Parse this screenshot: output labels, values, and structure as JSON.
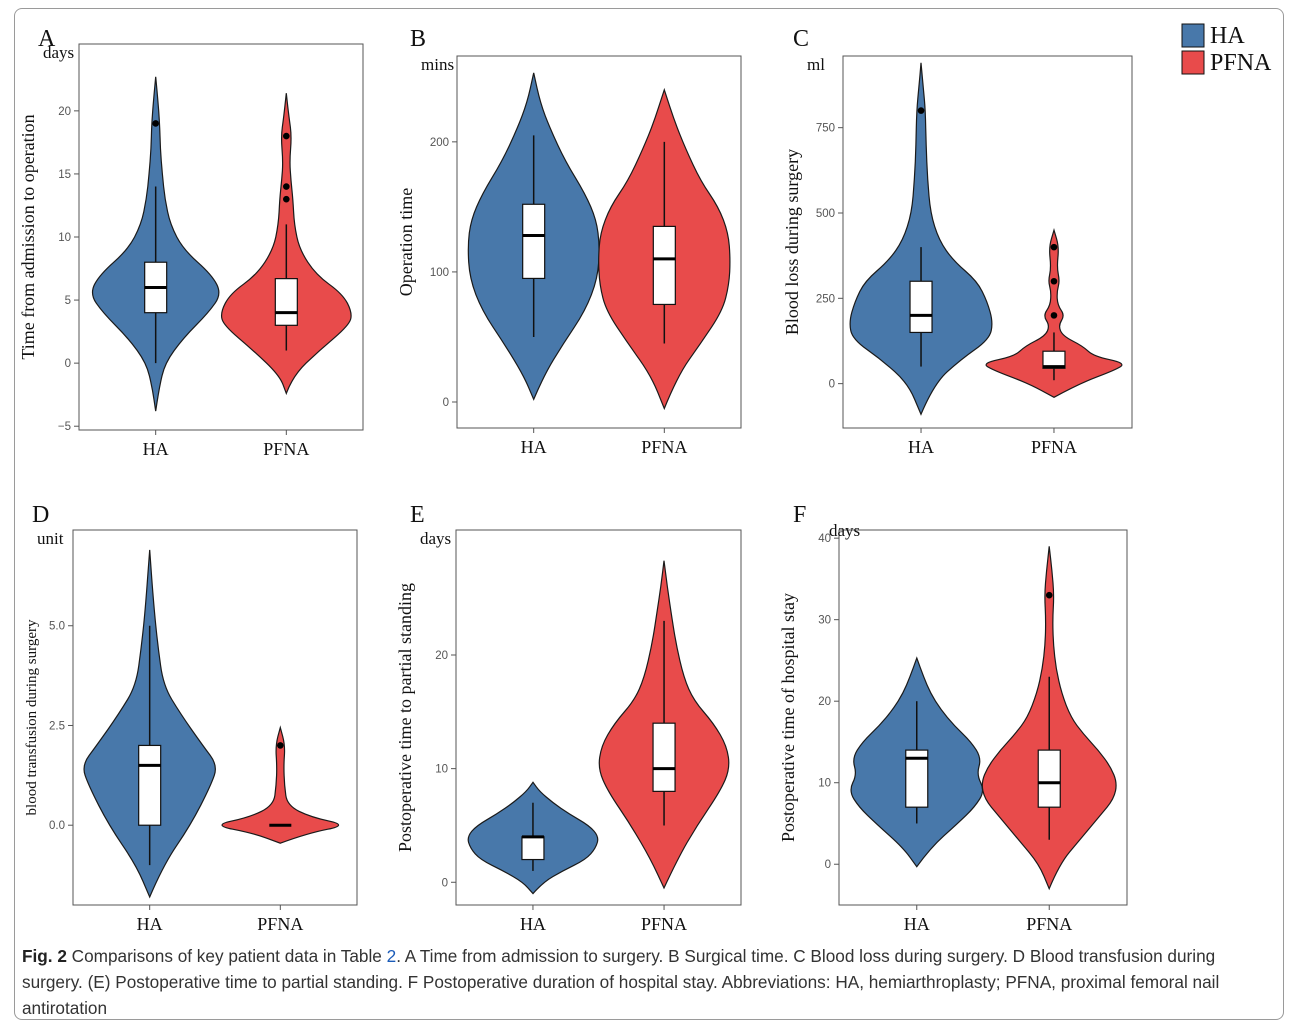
{
  "colors": {
    "HA": "#4878aa",
    "PFNA": "#e84b4b"
  },
  "legend": {
    "items": [
      "HA",
      "PFNA"
    ]
  },
  "caption": {
    "label": "Fig. 2",
    "before_ref": " Comparisons of key patient data in Table ",
    "ref": "2",
    "after_ref": ". A Time from admission to surgery. B Surgical time. C Blood loss during surgery. D Blood transfusion during surgery. (E) Postoperative time to partial standing. F Postoperative duration of hospital stay. Abbreviations: HA, hemiarthroplasty; PFNA, proximal femoral nail antirotation"
  },
  "chart_data": [
    {
      "type": "violin",
      "panel": "A",
      "unit": "days",
      "ylabel": "Time from admission to operation",
      "categories": [
        "HA",
        "PFNA"
      ],
      "yticks": [
        -5,
        0,
        5,
        10,
        15,
        20
      ],
      "ylim": [
        -5.3,
        25.3
      ],
      "groups": [
        {
          "name": "HA",
          "violin_min": -3.8,
          "violin_max": 22.7,
          "density": [
            [
              -3.8,
              0
            ],
            [
              -2,
              0.05
            ],
            [
              0,
              0.14
            ],
            [
              2,
              0.42
            ],
            [
              4,
              0.8
            ],
            [
              5.5,
              1
            ],
            [
              7,
              0.85
            ],
            [
              9,
              0.42
            ],
            [
              11,
              0.22
            ],
            [
              13,
              0.14
            ],
            [
              15,
              0.1
            ],
            [
              17,
              0.07
            ],
            [
              19,
              0.06
            ],
            [
              21,
              0.03
            ],
            [
              22.7,
              0
            ]
          ],
          "box": {
            "q1": 4,
            "median": 6,
            "q3": 8,
            "whisker_low": 0,
            "whisker_high": 14
          },
          "outliers": [
            19
          ]
        },
        {
          "name": "PFNA",
          "violin_min": -2.4,
          "violin_max": 21.4,
          "density": [
            [
              -2.4,
              0
            ],
            [
              -1,
              0.1
            ],
            [
              1,
              0.5
            ],
            [
              3,
              0.95
            ],
            [
              4,
              1
            ],
            [
              5.5,
              0.85
            ],
            [
              7,
              0.45
            ],
            [
              9,
              0.2
            ],
            [
              11,
              0.12
            ],
            [
              13,
              0.1
            ],
            [
              14.5,
              0.07
            ],
            [
              16,
              0.05
            ],
            [
              18,
              0.08
            ],
            [
              19.5,
              0.04
            ],
            [
              21.4,
              0
            ]
          ],
          "box": {
            "q1": 3,
            "median": 4,
            "q3": 6.7,
            "whisker_low": 1,
            "whisker_high": 11
          },
          "outliers": [
            18,
            14,
            13
          ]
        }
      ]
    },
    {
      "type": "violin",
      "panel": "B",
      "unit": "mins",
      "ylabel": "Operation time",
      "categories": [
        "HA",
        "PFNA"
      ],
      "yticks": [
        0,
        100,
        200
      ],
      "ylim": [
        -20,
        266
      ],
      "groups": [
        {
          "name": "HA",
          "violin_min": 2,
          "violin_max": 253,
          "density": [
            [
              2,
              0
            ],
            [
              20,
              0.15
            ],
            [
              45,
              0.45
            ],
            [
              70,
              0.78
            ],
            [
              95,
              0.97
            ],
            [
              120,
              1
            ],
            [
              140,
              0.95
            ],
            [
              160,
              0.78
            ],
            [
              185,
              0.48
            ],
            [
              210,
              0.25
            ],
            [
              230,
              0.1
            ],
            [
              253,
              0
            ]
          ],
          "box": {
            "q1": 95,
            "median": 128,
            "q3": 152,
            "whisker_low": 50,
            "whisker_high": 205
          },
          "outliers": []
        },
        {
          "name": "PFNA",
          "violin_min": -5,
          "violin_max": 240,
          "density": [
            [
              -5,
              0
            ],
            [
              20,
              0.2
            ],
            [
              45,
              0.55
            ],
            [
              70,
              0.88
            ],
            [
              90,
              0.98
            ],
            [
              110,
              1
            ],
            [
              130,
              0.97
            ],
            [
              150,
              0.82
            ],
            [
              170,
              0.55
            ],
            [
              195,
              0.32
            ],
            [
              215,
              0.16
            ],
            [
              240,
              0
            ]
          ],
          "box": {
            "q1": 75,
            "median": 110,
            "q3": 135,
            "whisker_low": 45,
            "whisker_high": 200
          },
          "outliers": []
        }
      ]
    },
    {
      "type": "violin",
      "panel": "C",
      "unit": "ml",
      "ylabel": "Blood loss during surgery",
      "categories": [
        "HA",
        "PFNA"
      ],
      "yticks": [
        0,
        250,
        500,
        750
      ],
      "ylim": [
        -130,
        960
      ],
      "groups": [
        {
          "name": "HA",
          "violin_min": -90,
          "violin_max": 940,
          "density": [
            [
              -90,
              0
            ],
            [
              0,
              0.18
            ],
            [
              70,
              0.55
            ],
            [
              130,
              0.95
            ],
            [
              180,
              1
            ],
            [
              240,
              0.92
            ],
            [
              300,
              0.78
            ],
            [
              360,
              0.45
            ],
            [
              420,
              0.25
            ],
            [
              500,
              0.13
            ],
            [
              600,
              0.09
            ],
            [
              700,
              0.07
            ],
            [
              800,
              0.06
            ],
            [
              870,
              0.03
            ],
            [
              940,
              0
            ]
          ],
          "box": {
            "q1": 150,
            "median": 200,
            "q3": 300,
            "whisker_low": 50,
            "whisker_high": 400
          },
          "outliers": [
            800
          ]
        },
        {
          "name": "PFNA",
          "violin_min": -40,
          "violin_max": 450,
          "density": [
            [
              -40,
              0
            ],
            [
              0,
              0.35
            ],
            [
              40,
              0.85
            ],
            [
              60,
              1
            ],
            [
              80,
              0.55
            ],
            [
              110,
              0.4
            ],
            [
              140,
              0.12
            ],
            [
              170,
              0.06
            ],
            [
              200,
              0.15
            ],
            [
              230,
              0.05
            ],
            [
              270,
              0.04
            ],
            [
              300,
              0.08
            ],
            [
              340,
              0.04
            ],
            [
              400,
              0.07
            ],
            [
              450,
              0
            ]
          ],
          "box": {
            "q1": 45,
            "median": 50,
            "q3": 95,
            "whisker_low": 10,
            "whisker_high": 150
          },
          "outliers": [
            400,
            300,
            200
          ]
        }
      ]
    },
    {
      "type": "violin",
      "panel": "D",
      "unit": "unit",
      "ylabel": "blood transfusion during surgery",
      "categories": [
        "HA",
        "PFNA"
      ],
      "yticks": [
        0.0,
        2.5,
        5.0
      ],
      "ylim": [
        -2.0,
        7.4
      ],
      "groups": [
        {
          "name": "HA",
          "violin_min": -1.8,
          "violin_max": 6.9,
          "density": [
            [
              -1.8,
              0
            ],
            [
              -1,
              0.2
            ],
            [
              0,
              0.6
            ],
            [
              1,
              0.9
            ],
            [
              1.5,
              1
            ],
            [
              2,
              0.78
            ],
            [
              2.8,
              0.45
            ],
            [
              3.5,
              0.2
            ],
            [
              4.5,
              0.12
            ],
            [
              5.5,
              0.06
            ],
            [
              6.9,
              0
            ]
          ],
          "box": {
            "q1": 0,
            "median": 1.5,
            "q3": 2,
            "whisker_low": -1,
            "whisker_high": 5
          },
          "outliers": []
        },
        {
          "name": "PFNA",
          "violin_min": -0.45,
          "violin_max": 2.45,
          "density": [
            [
              -0.45,
              0
            ],
            [
              -0.2,
              0.4
            ],
            [
              0,
              1
            ],
            [
              0.2,
              0.45
            ],
            [
              0.5,
              0.1
            ],
            [
              1,
              0.06
            ],
            [
              1.5,
              0.05
            ],
            [
              2,
              0.07
            ],
            [
              2.45,
              0
            ]
          ],
          "box": {
            "q1": 0,
            "median": 0,
            "q3": 0,
            "whisker_low": 0,
            "whisker_high": 0
          },
          "outliers": [
            2.0
          ]
        }
      ]
    },
    {
      "type": "violin",
      "panel": "E",
      "unit": "days",
      "ylabel": "Postoperative time to partial standing",
      "categories": [
        "HA",
        "PFNA"
      ],
      "yticks": [
        0,
        10,
        20
      ],
      "ylim": [
        -2,
        31
      ],
      "groups": [
        {
          "name": "HA",
          "violin_min": -1,
          "violin_max": 8.8,
          "density": [
            [
              -1,
              0
            ],
            [
              0,
              0.15
            ],
            [
              1,
              0.45
            ],
            [
              2,
              0.8
            ],
            [
              3,
              0.95
            ],
            [
              4,
              1
            ],
            [
              5,
              0.85
            ],
            [
              6,
              0.55
            ],
            [
              7,
              0.3
            ],
            [
              8,
              0.1
            ],
            [
              8.8,
              0
            ]
          ],
          "box": {
            "q1": 2,
            "median": 4,
            "q3": 4,
            "whisker_low": 1,
            "whisker_high": 7
          },
          "outliers": []
        },
        {
          "name": "PFNA",
          "violin_min": -0.5,
          "violin_max": 28.3,
          "density": [
            [
              -0.5,
              0
            ],
            [
              2,
              0.2
            ],
            [
              5,
              0.5
            ],
            [
              8,
              0.85
            ],
            [
              10,
              1
            ],
            [
              12,
              0.95
            ],
            [
              14,
              0.75
            ],
            [
              16,
              0.45
            ],
            [
              18,
              0.3
            ],
            [
              21,
              0.18
            ],
            [
              24,
              0.1
            ],
            [
              26,
              0.05
            ],
            [
              28.3,
              0
            ]
          ],
          "box": {
            "q1": 8,
            "median": 10,
            "q3": 14,
            "whisker_low": 5,
            "whisker_high": 23
          },
          "outliers": []
        }
      ]
    },
    {
      "type": "violin",
      "panel": "F",
      "unit": "days",
      "ylabel": "Postoperative time of hospital stay",
      "categories": [
        "HA",
        "PFNA"
      ],
      "yticks": [
        0,
        10,
        20,
        30,
        40
      ],
      "ylim": [
        -5,
        41
      ],
      "groups": [
        {
          "name": "HA",
          "violin_min": -0.3,
          "violin_max": 25.3,
          "density": [
            [
              -0.3,
              0
            ],
            [
              2,
              0.2
            ],
            [
              5,
              0.6
            ],
            [
              7,
              0.85
            ],
            [
              9,
              1
            ],
            [
              11,
              0.88
            ],
            [
              13,
              0.95
            ],
            [
              15,
              0.8
            ],
            [
              17,
              0.55
            ],
            [
              19,
              0.35
            ],
            [
              21,
              0.2
            ],
            [
              23,
              0.1
            ],
            [
              25.3,
              0
            ]
          ],
          "box": {
            "q1": 7,
            "median": 13,
            "q3": 14,
            "whisker_low": 5,
            "whisker_high": 20
          },
          "outliers": []
        },
        {
          "name": "PFNA",
          "violin_min": -3,
          "violin_max": 39,
          "density": [
            [
              -3,
              0
            ],
            [
              0,
              0.15
            ],
            [
              3,
              0.45
            ],
            [
              6,
              0.75
            ],
            [
              8,
              0.95
            ],
            [
              10,
              1
            ],
            [
              12,
              0.9
            ],
            [
              14,
              0.72
            ],
            [
              16,
              0.5
            ],
            [
              18,
              0.32
            ],
            [
              21,
              0.18
            ],
            [
              24,
              0.1
            ],
            [
              27,
              0.06
            ],
            [
              30,
              0.05
            ],
            [
              33,
              0.07
            ],
            [
              36,
              0.04
            ],
            [
              39,
              0
            ]
          ],
          "box": {
            "q1": 7,
            "median": 10,
            "q3": 14,
            "whisker_low": 3,
            "whisker_high": 23
          },
          "outliers": [
            33
          ]
        }
      ]
    }
  ]
}
